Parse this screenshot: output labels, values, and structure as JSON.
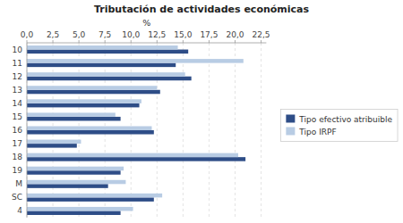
{
  "chart_data": {
    "type": "bar",
    "orientation": "horizontal",
    "title": "Tributación de actividades económicas",
    "xlabel": "%",
    "categories": [
      "10",
      "11",
      "12",
      "13",
      "14",
      "15",
      "16",
      "17",
      "18",
      "19",
      "M",
      "SC",
      "4"
    ],
    "series": [
      {
        "name": "Tipo efectivo atribuible",
        "color": "#2E4D87",
        "values": [
          15.5,
          14.3,
          15.8,
          12.8,
          10.8,
          9.0,
          12.2,
          4.8,
          21.0,
          9.0,
          7.8,
          12.2,
          9.0
        ]
      },
      {
        "name": "Tipo IRPF",
        "color": "#B8CCE4",
        "values": [
          14.5,
          20.8,
          15.2,
          12.5,
          11.0,
          8.5,
          12.0,
          5.2,
          20.3,
          9.3,
          9.5,
          13.0,
          10.2
        ]
      }
    ],
    "xlim": [
      0,
      23.0
    ],
    "xticks": [
      {
        "value": 0.0,
        "label": "0,0"
      },
      {
        "value": 2.5,
        "label": "2,5"
      },
      {
        "value": 5.0,
        "label": "5,0"
      },
      {
        "value": 7.5,
        "label": "7,5"
      },
      {
        "value": 10.0,
        "label": "10,0"
      },
      {
        "value": 12.5,
        "label": "12,5"
      },
      {
        "value": 15.0,
        "label": "15,0"
      },
      {
        "value": 17.5,
        "label": "17,5"
      },
      {
        "value": 20.0,
        "label": "20,0"
      },
      {
        "value": 22.5,
        "label": "22,5"
      }
    ],
    "grid": true,
    "legend": "right"
  }
}
